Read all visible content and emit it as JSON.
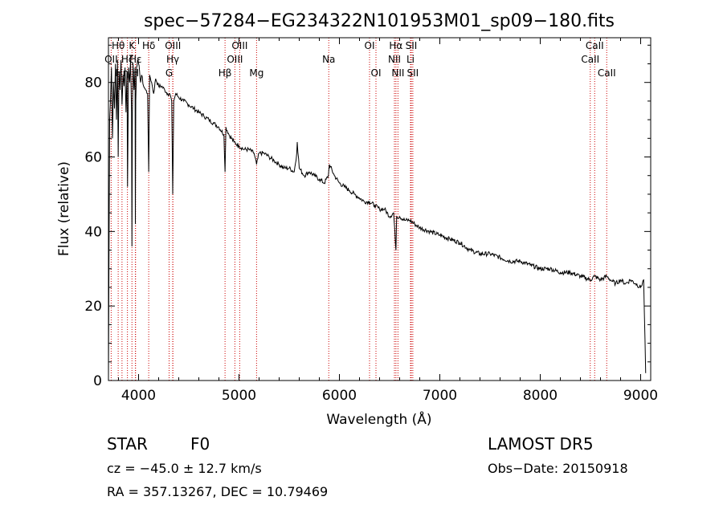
{
  "chart_data": {
    "type": "line",
    "title": "spec−57284−EG234322N101953M01_sp09−180.fits",
    "xlabel": "Wavelength (Å)",
    "ylabel": "Flux (relative)",
    "xlim": [
      3700,
      9100
    ],
    "ylim": [
      0,
      92
    ],
    "x_ticks": [
      4000,
      5000,
      6000,
      7000,
      8000,
      9000
    ],
    "y_ticks": [
      0,
      20,
      40,
      60,
      80
    ],
    "grid": false,
    "series": [
      {
        "x": [
          3700,
          3705,
          3712,
          3720,
          3730,
          3740,
          3750,
          3760,
          3770,
          3780,
          3790,
          3797,
          3805,
          3815,
          3825,
          3835,
          3845,
          3855,
          3865,
          3875,
          3885,
          3890,
          3900,
          3910,
          3920,
          3930,
          3934,
          3938,
          3945,
          3955,
          3965,
          3968,
          3972,
          3980,
          3990,
          4000,
          4010,
          4020,
          4030,
          4050,
          4070,
          4090,
          4101,
          4110,
          4130,
          4150,
          4170,
          4200,
          4230,
          4260,
          4290,
          4310,
          4330,
          4340,
          4350,
          4370,
          4400,
          4450,
          4500,
          4550,
          4600,
          4650,
          4700,
          4750,
          4800,
          4850,
          4861,
          4870,
          4900,
          4950,
          5000,
          5050,
          5100,
          5150,
          5175,
          5200,
          5250,
          5300,
          5350,
          5400,
          5450,
          5500,
          5550,
          5575,
          5580,
          5600,
          5650,
          5700,
          5750,
          5800,
          5850,
          5890,
          5900,
          5950,
          6000,
          6050,
          6100,
          6150,
          6200,
          6250,
          6300,
          6350,
          6400,
          6450,
          6500,
          6540,
          6563,
          6570,
          6600,
          6650,
          6700,
          6750,
          6800,
          6900,
          7000,
          7100,
          7200,
          7300,
          7400,
          7500,
          7600,
          7700,
          7800,
          7900,
          8000,
          8100,
          8200,
          8300,
          8400,
          8500,
          8542,
          8600,
          8662,
          8700,
          8750,
          8800,
          8850,
          8900,
          8950,
          9000,
          9030,
          9050
        ],
        "y": [
          0,
          32,
          70,
          75,
          84,
          65,
          80,
          73,
          85,
          70,
          86,
          60,
          83,
          78,
          86,
          74,
          82,
          79,
          84,
          72,
          83,
          52,
          84,
          80,
          86,
          72,
          36,
          72,
          85,
          78,
          84,
          42,
          75,
          84,
          86,
          85,
          83,
          80,
          82,
          79,
          78,
          77,
          56,
          82,
          80,
          77,
          81,
          79,
          79,
          78,
          77,
          77,
          75,
          50,
          75,
          77,
          76,
          75,
          74,
          73,
          72,
          71,
          70,
          69,
          68,
          66,
          56,
          68,
          66,
          64,
          63,
          62,
          62,
          61,
          58,
          61,
          61,
          60,
          59,
          58,
          57,
          57,
          56,
          61,
          64,
          57,
          55,
          56,
          55,
          54,
          53,
          55,
          58,
          55,
          53,
          52,
          51,
          50,
          49,
          48,
          48,
          47,
          46,
          46,
          44,
          45,
          35,
          44,
          44,
          43,
          43,
          42,
          41,
          40,
          39,
          38,
          37,
          35,
          34,
          34,
          33,
          32,
          32,
          31,
          30,
          30,
          29,
          29,
          28,
          27,
          28,
          27,
          28,
          27,
          26,
          27,
          26,
          27,
          26,
          25,
          27,
          2
        ],
        "color": "#000000"
      }
    ],
    "line_markers": [
      {
        "label": "OII",
        "wl": 3727,
        "row": 2
      },
      {
        "label": "Hθ",
        "wl": 3797,
        "row": 1
      },
      {
        "label": "Hη",
        "wl": 3835,
        "row": 3
      },
      {
        "label": "Hζ",
        "wl": 3889,
        "row": 2
      },
      {
        "label": "K",
        "wl": 3934,
        "row": 1
      },
      {
        "label": "H",
        "wl": 3968,
        "row": 3
      },
      {
        "label": "Hε",
        "wl": 3970,
        "row": 2
      },
      {
        "label": "Hδ",
        "wl": 4101,
        "row": 1
      },
      {
        "label": "G",
        "wl": 4304,
        "row": 3
      },
      {
        "label": "OIII",
        "wl": 4342,
        "row": 1
      },
      {
        "label": "Hγ",
        "wl": 4340,
        "row": 2
      },
      {
        "label": "Hβ",
        "wl": 4861,
        "row": 3
      },
      {
        "label": "OIII",
        "wl": 4959,
        "row": 2
      },
      {
        "label": "OIII",
        "wl": 5007,
        "row": 1
      },
      {
        "label": "Mg",
        "wl": 5175,
        "row": 3
      },
      {
        "label": "Na",
        "wl": 5894,
        "row": 2
      },
      {
        "label": "OI",
        "wl": 6300,
        "row": 1
      },
      {
        "label": "OI",
        "wl": 6364,
        "row": 3
      },
      {
        "label": "NII",
        "wl": 6548,
        "row": 2
      },
      {
        "label": "Hα",
        "wl": 6563,
        "row": 1
      },
      {
        "label": "NII",
        "wl": 6583,
        "row": 3
      },
      {
        "label": "SII",
        "wl": 6716,
        "row": 1
      },
      {
        "label": "Li",
        "wl": 6708,
        "row": 2
      },
      {
        "label": "SII",
        "wl": 6731,
        "row": 3
      },
      {
        "label": "CaII",
        "wl": 8498,
        "row": 2
      },
      {
        "label": "CaII",
        "wl": 8542,
        "row": 1
      },
      {
        "label": "CaII",
        "wl": 8662,
        "row": 3
      }
    ],
    "marker_color": "#cc0000"
  },
  "info": {
    "class": "STAR",
    "subclass": "F0",
    "survey": "LAMOST DR5",
    "cz": "cz = −45.0 ± 12.7 km/s",
    "obs_date": "Obs−Date: 20150918",
    "coords": "RA = 357.13267, DEC =  10.79469"
  }
}
